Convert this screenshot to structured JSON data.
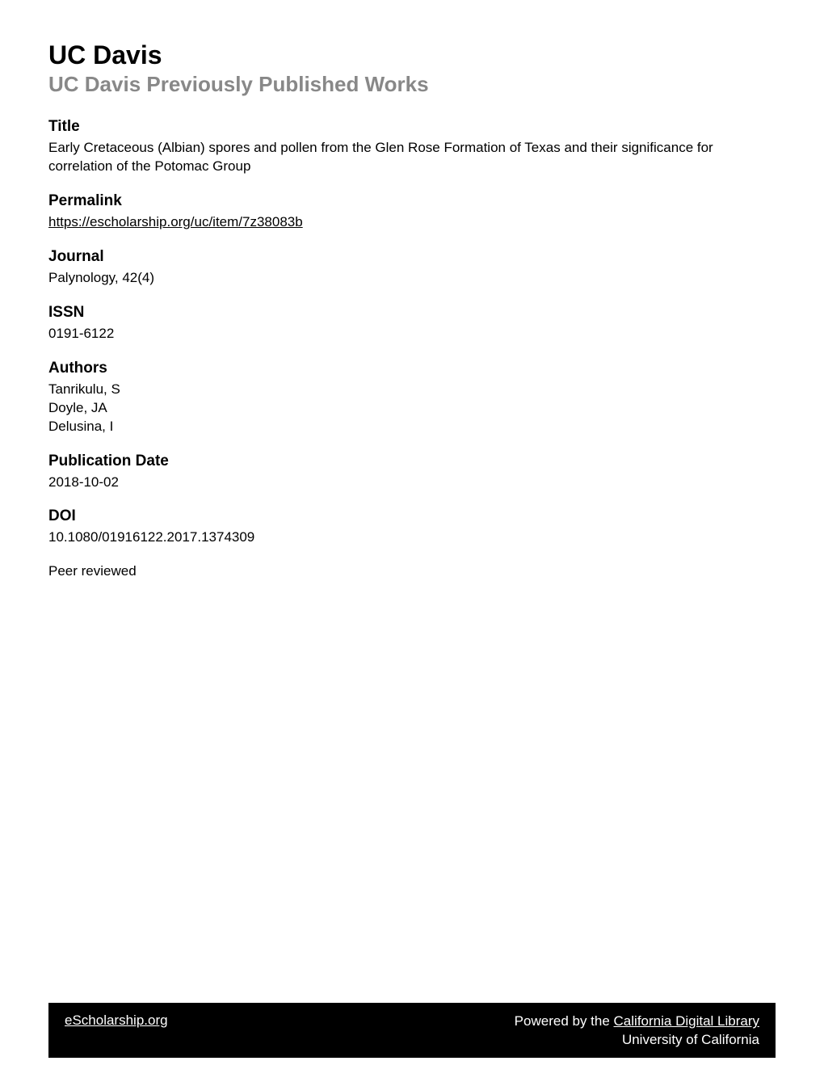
{
  "header": {
    "institution": "UC Davis",
    "subtitle": "UC Davis Previously Published Works"
  },
  "sections": {
    "title": {
      "heading": "Title",
      "text": "Early Cretaceous (Albian) spores and pollen from the Glen Rose Formation of Texas and their significance for correlation of the Potomac Group"
    },
    "permalink": {
      "heading": "Permalink",
      "url": "https://escholarship.org/uc/item/7z38083b"
    },
    "journal": {
      "heading": "Journal",
      "text": "Palynology, 42(4)"
    },
    "issn": {
      "heading": "ISSN",
      "text": "0191-6122"
    },
    "authors": {
      "heading": "Authors",
      "list": [
        "Tanrikulu, S",
        "Doyle, JA",
        "Delusina, I"
      ]
    },
    "publication_date": {
      "heading": "Publication Date",
      "text": "2018-10-02"
    },
    "doi": {
      "heading": "DOI",
      "text": "10.1080/01916122.2017.1374309"
    },
    "peer_reviewed": "Peer reviewed"
  },
  "footer": {
    "left": "eScholarship.org",
    "right_prefix": "Powered by the ",
    "right_link": "California Digital Library",
    "right_second_line": "University of California"
  },
  "colors": {
    "background": "#ffffff",
    "text": "#000000",
    "subtitle": "#888888",
    "footer_bg": "#000000",
    "footer_text": "#ffffff"
  },
  "typography": {
    "institution_size": 32,
    "subtitle_size": 26,
    "heading_size": 19,
    "body_size": 17,
    "footer_size": 17
  }
}
